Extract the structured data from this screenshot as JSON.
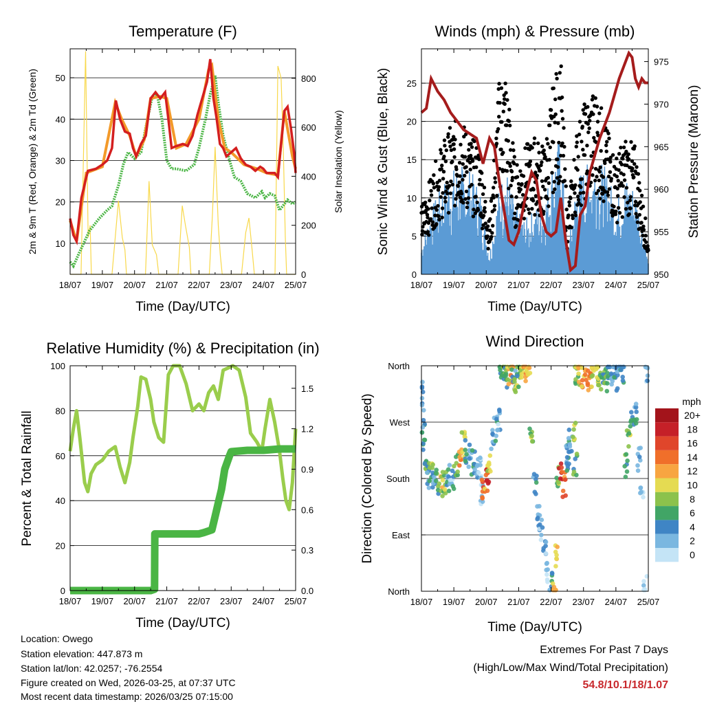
{
  "footer": {
    "location": "Location: Owego",
    "elevation": "Station elevation: 447.873 m",
    "latlon": "Station lat/lon: 42.0257; -76.2554",
    "created": "Figure created on Wed, 2026-03-25, at 07:37 UTC",
    "recent": "Most recent data timestamp: 2026/03/25 07:15:00",
    "extremes_title": "Extremes For Past 7 Days",
    "extremes_desc": "(High/Low/Max Wind/Total Precipitation)",
    "extremes_values": "54.8/10.1/18/1.07",
    "extremes_color": "#c8282c"
  },
  "chart_data": [
    {
      "type": "line",
      "title": "Temperature (F)",
      "xlabel": "Time (Day/UTC)",
      "ylabel": "2m & 9m T (Red, Orange) & 2m Td (Green)",
      "y2label": "Solar Insolation (Yellow)",
      "x_ticks": [
        "18/07",
        "19/07",
        "20/07",
        "21/07",
        "22/07",
        "23/07",
        "24/07",
        "25/07"
      ],
      "xlim": [
        0,
        7
      ],
      "ylim": [
        2.5,
        57
      ],
      "y_ticks": [
        10,
        20,
        30,
        40,
        50
      ],
      "y2lim": [
        0,
        920
      ],
      "y2_ticks": [
        0,
        200,
        400,
        600,
        800
      ],
      "series": [
        {
          "name": "2m T",
          "color": "#d41f1f",
          "x": [
            0,
            0.1,
            0.2,
            0.35,
            0.55,
            0.8,
            1.0,
            1.15,
            1.3,
            1.42,
            1.55,
            1.7,
            1.85,
            1.95,
            2.05,
            2.2,
            2.35,
            2.5,
            2.65,
            2.8,
            2.95,
            3.05,
            3.15,
            3.3,
            3.5,
            3.65,
            3.8,
            3.95,
            4.1,
            4.25,
            4.35,
            4.45,
            4.55,
            4.65,
            4.75,
            4.85,
            5.0,
            5.15,
            5.3,
            5.45,
            5.6,
            5.75,
            5.9,
            6.0,
            6.1,
            6.2,
            6.35,
            6.45,
            6.55,
            6.65,
            6.75,
            6.85,
            6.95,
            7.0
          ],
          "y": [
            16,
            12,
            10.5,
            21,
            27.5,
            28,
            29,
            30,
            33,
            44.5,
            40,
            37,
            36.5,
            33,
            31,
            34,
            36,
            45,
            46.5,
            45,
            46.5,
            40,
            33,
            33.5,
            34,
            33.5,
            36,
            41,
            45,
            49,
            54.5,
            45,
            40,
            34,
            33,
            31,
            32,
            33,
            30.5,
            29,
            28.5,
            27.5,
            28.5,
            28,
            27,
            27,
            27,
            26,
            34,
            42,
            43,
            38,
            32,
            27
          ]
        },
        {
          "name": "9m T",
          "color": "#f39a2a",
          "x": [
            0,
            0.2,
            0.5,
            1.0,
            1.4,
            1.6,
            1.85,
            2.05,
            2.3,
            2.5,
            2.8,
            3.0,
            3.3,
            3.6,
            4.0,
            4.3,
            4.4,
            4.6,
            4.8,
            5.0,
            5.4,
            5.8,
            6.1,
            6.45,
            6.65,
            6.9,
            7.0
          ],
          "y": [
            15.5,
            10.5,
            27,
            28.5,
            44,
            40,
            36,
            31,
            35,
            45,
            45.5,
            45,
            33,
            34,
            40,
            52,
            53,
            40,
            33,
            32,
            29,
            28,
            27,
            26.5,
            42,
            31,
            28
          ]
        },
        {
          "name": "2m Td",
          "color": "#4ab544",
          "x": [
            0,
            0.1,
            0.3,
            0.6,
            0.9,
            1.15,
            1.3,
            1.5,
            1.65,
            1.8,
            2.0,
            2.2,
            2.4,
            2.55,
            2.7,
            2.85,
            3.0,
            3.15,
            3.3,
            3.6,
            3.85,
            4.0,
            4.2,
            4.35,
            4.5,
            4.6,
            4.75,
            4.95,
            5.1,
            5.3,
            5.5,
            5.75,
            5.95,
            6.05,
            6.2,
            6.35,
            6.5,
            6.6,
            6.75,
            6.9,
            7.0
          ],
          "y": [
            5.5,
            4.5,
            8,
            13,
            16,
            18,
            19,
            24,
            29,
            32,
            30.5,
            32,
            40,
            45.5,
            46,
            40,
            30,
            28,
            28,
            27.5,
            29,
            33,
            40,
            46,
            50.5,
            44,
            36,
            30,
            26,
            25,
            22,
            21,
            22.5,
            21,
            22,
            21.5,
            18,
            19,
            20.5,
            19.5,
            20
          ]
        },
        {
          "name": "Solar Insolation",
          "color": "#f8d84a",
          "axis": "y2",
          "x": [
            0.0,
            0.34,
            0.48,
            0.56,
            0.62,
            0.66,
            1.3,
            1.5,
            1.62,
            1.7,
            1.75,
            2.34,
            2.45,
            2.55,
            2.68,
            2.75,
            3.35,
            3.48,
            3.58,
            3.7,
            3.75,
            4.32,
            4.42,
            4.5,
            4.6,
            4.66,
            4.72,
            5.32,
            5.45,
            5.55,
            5.65,
            5.72,
            6.36,
            6.45,
            6.55,
            6.62,
            6.68,
            6.72,
            7.0
          ],
          "y": [
            0,
            0,
            910,
            150,
            200,
            0,
            0,
            300,
            150,
            100,
            0,
            0,
            380,
            120,
            80,
            0,
            0,
            280,
            200,
            110,
            0,
            0,
            250,
            520,
            200,
            80,
            0,
            0,
            170,
            230,
            100,
            0,
            0,
            850,
            800,
            500,
            150,
            0,
            0
          ]
        }
      ]
    },
    {
      "type": "scatter+line",
      "title": "Winds (mph) & Pressure (mb)",
      "xlabel": "Time (Day/UTC)",
      "ylabel": "Sonic Wind & Gust (Blue, Black)",
      "y2label": "Station Pressure (Maroon)",
      "x_ticks": [
        "18/07",
        "19/07",
        "20/07",
        "21/07",
        "22/07",
        "23/07",
        "24/07",
        "25/07"
      ],
      "xlim": [
        0,
        7
      ],
      "ylim": [
        0,
        29.5
      ],
      "y_ticks": [
        0,
        5,
        10,
        15,
        20,
        25
      ],
      "y2lim": [
        950,
        976.5
      ],
      "y2_ticks": [
        950,
        955,
        960,
        965,
        970,
        975
      ],
      "series": [
        {
          "name": "Sonic Wind",
          "color": "#5b9bd5",
          "x": [
            0,
            0.3,
            0.6,
            0.9,
            1.2,
            1.5,
            1.8,
            2.1,
            2.4,
            2.6,
            2.9,
            3.2,
            3.5,
            3.8,
            4.1,
            4.3,
            4.5,
            4.8,
            5.1,
            5.4,
            5.7,
            6.0,
            6.3,
            6.6,
            6.9,
            7.0
          ],
          "y": [
            3,
            6,
            8,
            9.5,
            10,
            9.5,
            8,
            2,
            8,
            10,
            6,
            5,
            6,
            7,
            11,
            13,
            2,
            9,
            10,
            11,
            9.5,
            7,
            9,
            8,
            3,
            1
          ]
        },
        {
          "name": "Gust",
          "color": "#000000",
          "x": [
            0,
            0.3,
            0.6,
            0.9,
            1.2,
            1.5,
            1.8,
            2.1,
            2.4,
            2.6,
            2.9,
            3.2,
            3.5,
            3.8,
            4.1,
            4.3,
            4.5,
            4.8,
            5.1,
            5.4,
            5.7,
            6.0,
            6.3,
            6.6,
            6.9,
            7.0
          ],
          "y": [
            7,
            10,
            13,
            15,
            16,
            14,
            13,
            5,
            20,
            21,
            11,
            13,
            14,
            13,
            20,
            22,
            6,
            15,
            18,
            19,
            15,
            12,
            14,
            13,
            6,
            3
          ]
        },
        {
          "name": "Station Pressure",
          "color": "#a51c1c",
          "axis": "y2",
          "x": [
            0,
            0.15,
            0.3,
            0.5,
            0.7,
            0.9,
            1.1,
            1.3,
            1.5,
            1.7,
            1.9,
            2.1,
            2.25,
            2.4,
            2.55,
            2.7,
            2.85,
            3.0,
            3.2,
            3.4,
            3.55,
            3.7,
            3.85,
            4.0,
            4.15,
            4.3,
            4.45,
            4.6,
            4.75,
            4.9,
            5.05,
            5.2,
            5.35,
            5.5,
            5.65,
            5.8,
            5.95,
            6.1,
            6.25,
            6.4,
            6.5,
            6.6,
            6.7,
            6.8,
            6.9,
            7.0
          ],
          "y": [
            969,
            969.5,
            973,
            971.5,
            970.5,
            969,
            968,
            967,
            966.5,
            966,
            963,
            966,
            965,
            961,
            957.5,
            954,
            953.5,
            955,
            959,
            962,
            961,
            957,
            955,
            954.5,
            955,
            959,
            954,
            950.5,
            951,
            957,
            958,
            962,
            964,
            966,
            967.5,
            969,
            971,
            973,
            974.5,
            976,
            975.5,
            973,
            972,
            973,
            972.5,
            972.5
          ]
        }
      ]
    },
    {
      "type": "line",
      "title": "Relative Humidity (%) & Precipitation (in)",
      "xlabel": "Time (Day/UTC)",
      "ylabel": "Percent & Total Rainfall",
      "x_ticks": [
        "18/07",
        "19/07",
        "20/07",
        "21/07",
        "22/07",
        "23/07",
        "24/07",
        "25/07"
      ],
      "xlim": [
        0,
        7
      ],
      "ylim": [
        0,
        100
      ],
      "y_ticks": [
        0,
        20,
        40,
        60,
        80,
        100
      ],
      "y2lim": [
        0,
        1.667
      ],
      "y2_ticks": [
        "0.0",
        "0.3",
        "0.6",
        "0.9",
        "1.2",
        "1.5"
      ],
      "series": [
        {
          "name": "Relative Humidity",
          "color": "#9acd4c",
          "x": [
            0,
            0.1,
            0.2,
            0.3,
            0.45,
            0.55,
            0.65,
            0.8,
            1.0,
            1.2,
            1.4,
            1.55,
            1.7,
            1.85,
            1.95,
            2.1,
            2.2,
            2.35,
            2.5,
            2.6,
            2.75,
            2.9,
            3.05,
            3.2,
            3.4,
            3.6,
            3.8,
            4.0,
            4.15,
            4.3,
            4.45,
            4.6,
            4.75,
            4.9,
            5.05,
            5.25,
            5.45,
            5.6,
            5.8,
            5.95,
            6.05,
            6.2,
            6.35,
            6.5,
            6.6,
            6.7,
            6.8,
            6.9,
            7.0
          ],
          "y": [
            62,
            72,
            80,
            68,
            48,
            44,
            52,
            56,
            58,
            62,
            64,
            55,
            48,
            57,
            68,
            82,
            95,
            94,
            85,
            75,
            68,
            66,
            96,
            100,
            100,
            92,
            80,
            83,
            80,
            88,
            91,
            85,
            98,
            99,
            100,
            98,
            86,
            70,
            66,
            62,
            72,
            85,
            75,
            62,
            50,
            40,
            36,
            48,
            72
          ]
        },
        {
          "name": "Total Rainfall",
          "color": "#4ab544",
          "axis": "y2",
          "x": [
            0,
            1.0,
            2.0,
            2.5,
            2.62,
            2.63,
            3.5,
            4.0,
            4.15,
            4.4,
            4.5,
            4.6,
            4.7,
            4.8,
            4.95,
            5.0,
            5.5,
            6.0,
            6.5,
            7.0
          ],
          "y": [
            0,
            0,
            0,
            0,
            0.01,
            0.42,
            0.42,
            0.42,
            0.43,
            0.45,
            0.55,
            0.65,
            0.75,
            0.9,
            1.0,
            1.03,
            1.04,
            1.04,
            1.05,
            1.05
          ]
        }
      ]
    },
    {
      "type": "scatter",
      "title": "Wind Direction",
      "xlabel": "Time (Day/UTC)",
      "ylabel": "Direction (Colored By Speed)",
      "x_ticks": [
        "18/07",
        "19/07",
        "20/07",
        "21/07",
        "22/07",
        "23/07",
        "24/07",
        "25/07"
      ],
      "xlim": [
        0,
        7
      ],
      "ylim": [
        0,
        360
      ],
      "y_ticks": [
        "North",
        "East",
        "South",
        "West",
        "North"
      ],
      "legend_title": "mph",
      "legend_labels": [
        "20+",
        "18",
        "16",
        "14",
        "12",
        "10",
        "8",
        "6",
        "4",
        "2",
        "0"
      ],
      "legend_colors": [
        "#a3141b",
        "#c52028",
        "#e0462b",
        "#f06f2a",
        "#f8a541",
        "#e5db52",
        "#8cc24c",
        "#41a566",
        "#3f85c5",
        "#7ab7e0",
        "#c4e4f6"
      ],
      "x": [
        0.02,
        0.05,
        0.1,
        0.15,
        0.2,
        0.3,
        0.4,
        0.5,
        0.6,
        0.7,
        0.8,
        0.9,
        1.0,
        1.1,
        1.2,
        1.3,
        1.4,
        1.5,
        1.6,
        1.7,
        1.8,
        1.85,
        1.9,
        2.0,
        2.05,
        2.1,
        2.2,
        2.3,
        2.4,
        2.45,
        2.55,
        2.6,
        2.7,
        2.8,
        2.85,
        2.9,
        3.0,
        3.1,
        3.2,
        3.3,
        3.4,
        3.5,
        3.6,
        3.7,
        3.8,
        3.9,
        4.0,
        4.1,
        4.15,
        4.2,
        4.3,
        4.4,
        4.5,
        4.5,
        4.6,
        4.7,
        4.75,
        4.8,
        4.9,
        5.0,
        5.1,
        5.2,
        5.3,
        5.4,
        5.5,
        5.6,
        5.7,
        5.8,
        5.9,
        6.0,
        6.1,
        6.2,
        6.3,
        6.4,
        6.5,
        6.6,
        6.7,
        6.8,
        6.9,
        6.95
      ],
      "y": [
        315,
        270,
        225,
        195,
        180,
        195,
        180,
        175,
        170,
        175,
        180,
        190,
        180,
        200,
        220,
        235,
        225,
        215,
        205,
        195,
        195,
        150,
        160,
        180,
        185,
        200,
        240,
        260,
        275,
        350,
        350,
        340,
        345,
        350,
        340,
        335,
        345,
        350,
        355,
        350,
        250,
        170,
        120,
        100,
        60,
        30,
        15,
        2,
        60,
        180,
        190,
        170,
        200,
        220,
        240,
        260,
        200,
        350,
        345,
        340,
        340,
        335,
        345,
        350,
        340,
        345,
        335,
        350,
        350,
        340,
        355,
        350,
        200,
        240,
        270,
        280,
        210,
        150,
        5,
        350
      ],
      "speeds": [
        3,
        4,
        5,
        6,
        3,
        8,
        4,
        6,
        10,
        8,
        4,
        2,
        6,
        7,
        12,
        9,
        4,
        3,
        6,
        2,
        1,
        1,
        14,
        12,
        16,
        10,
        3,
        4,
        2,
        5,
        8,
        6,
        10,
        12,
        4,
        8,
        6,
        9,
        12,
        11,
        8,
        4,
        3,
        2,
        2,
        1,
        4,
        12,
        10,
        8,
        16,
        14,
        4,
        4,
        3,
        8,
        6,
        8,
        10,
        12,
        13,
        14,
        10,
        9,
        8,
        6,
        7,
        4,
        2,
        5,
        3,
        4,
        6,
        8,
        5,
        4,
        3,
        1,
        1,
        2
      ]
    }
  ]
}
